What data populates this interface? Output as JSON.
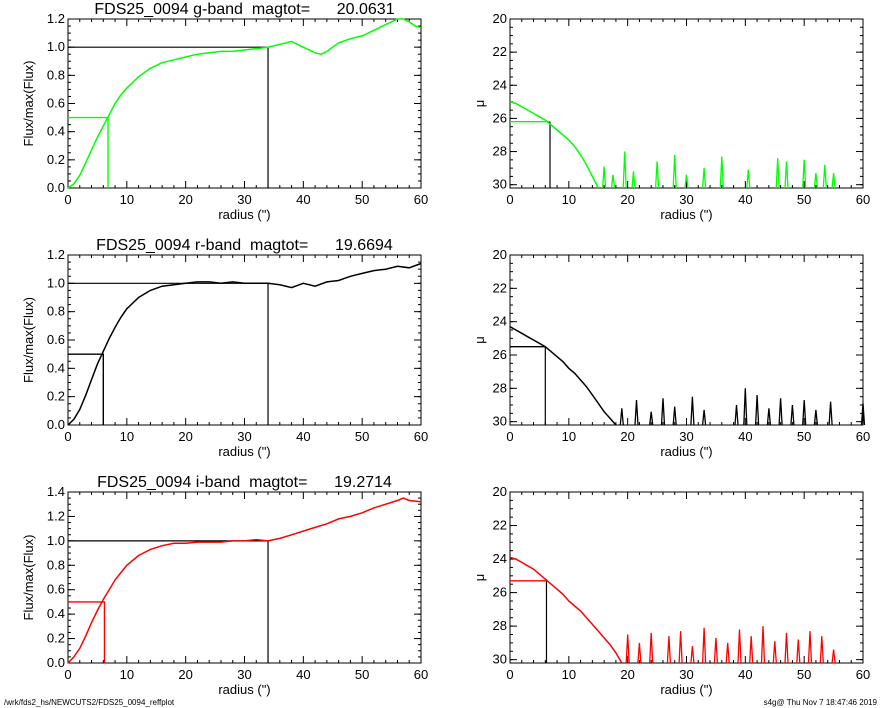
{
  "footer": {
    "path": "/wrk/fds2_hs/NEWCUTS2/FDS25_0094_reffplot",
    "stamp": "s4g@  Thu Nov  7 18:47:46 2019"
  },
  "chart_data": [
    {
      "id": "g-flux",
      "type": "line",
      "color": "#00ff00",
      "title": "FDS25_0094 g-band  magtot=      20.0631",
      "xlabel": "radius (\")",
      "ylabel": "Flux/max(Flux)",
      "xlim": [
        0,
        60
      ],
      "ylim": [
        0,
        1.2
      ],
      "xticks": [
        0,
        10,
        20,
        30,
        40,
        50,
        60
      ],
      "yticks": [
        0.0,
        0.2,
        0.4,
        0.6,
        0.8,
        1.0,
        1.2
      ],
      "ytick_labels": [
        "0.0",
        "0.2",
        "0.4",
        "0.6",
        "0.8",
        "1.0",
        "1.2"
      ],
      "series": [
        {
          "x": [
            0,
            1,
            2,
            3,
            4,
            5,
            6,
            7,
            8,
            9,
            10,
            12,
            14,
            16,
            18,
            20,
            22,
            24,
            26,
            28,
            30,
            32,
            34,
            36,
            38,
            40,
            42,
            43,
            44,
            46,
            48,
            50,
            52,
            54,
            56,
            57,
            58,
            59,
            60
          ],
          "y": [
            0.0,
            0.03,
            0.09,
            0.18,
            0.27,
            0.36,
            0.44,
            0.52,
            0.6,
            0.66,
            0.71,
            0.79,
            0.85,
            0.89,
            0.91,
            0.93,
            0.95,
            0.96,
            0.97,
            0.97,
            0.98,
            0.99,
            1.0,
            1.02,
            1.04,
            1.0,
            0.96,
            0.95,
            0.97,
            1.03,
            1.06,
            1.08,
            1.12,
            1.16,
            1.2,
            1.22,
            1.18,
            1.15,
            1.14
          ]
        }
      ],
      "reference": {
        "half_flux": 0.5,
        "r_eff": 6.8,
        "r_tot": 34.0,
        "f_tot": 1.0
      }
    },
    {
      "id": "g-mu",
      "type": "line",
      "color": "#00ff00",
      "xlabel": "radius (\")",
      "ylabel": "μ",
      "xlim": [
        0,
        60
      ],
      "ylim": [
        30.2,
        20
      ],
      "invert_y": true,
      "xticks": [
        0,
        10,
        20,
        30,
        40,
        50,
        60
      ],
      "yticks": [
        20,
        22,
        24,
        26,
        28,
        30
      ],
      "ytick_labels": [
        "20",
        "22",
        "24",
        "26",
        "28",
        "30"
      ],
      "series": [
        {
          "x": [
            0,
            1,
            2,
            3,
            4,
            5,
            6,
            7,
            8,
            9,
            10,
            11,
            12,
            13,
            14,
            15
          ],
          "y": [
            25.0,
            25.1,
            25.3,
            25.5,
            25.7,
            25.9,
            26.1,
            26.4,
            26.7,
            27.0,
            27.3,
            27.7,
            28.2,
            28.8,
            29.5,
            30.2
          ]
        }
      ],
      "reference": {
        "mu_eff": 26.2,
        "r_eff": 6.8
      },
      "noise_spikes": [
        [
          16,
          28.9
        ],
        [
          17.5,
          29.4
        ],
        [
          19.5,
          28.0
        ],
        [
          21,
          29.2
        ],
        [
          25,
          28.6
        ],
        [
          28,
          28.2
        ],
        [
          30,
          29.4
        ],
        [
          33,
          29.0
        ],
        [
          36,
          28.3
        ],
        [
          40.5,
          29.1
        ],
        [
          45.5,
          28.4
        ],
        [
          47,
          28.6
        ],
        [
          50,
          28.5
        ],
        [
          52,
          29.3
        ],
        [
          53.5,
          28.8
        ],
        [
          55,
          29.3
        ]
      ]
    },
    {
      "id": "r-flux",
      "type": "line",
      "color": "#000000",
      "title": "FDS25_0094 r-band  magtot=      19.6694",
      "xlabel": "radius (\")",
      "ylabel": "Flux/max(Flux)",
      "xlim": [
        0,
        60
      ],
      "ylim": [
        0,
        1.2
      ],
      "xticks": [
        0,
        10,
        20,
        30,
        40,
        50,
        60
      ],
      "yticks": [
        0.0,
        0.2,
        0.4,
        0.6,
        0.8,
        1.0,
        1.2
      ],
      "ytick_labels": [
        "0.0",
        "0.2",
        "0.4",
        "0.6",
        "0.8",
        "1.0",
        "1.2"
      ],
      "series": [
        {
          "x": [
            0,
            1,
            2,
            3,
            4,
            5,
            6,
            7,
            8,
            9,
            10,
            12,
            14,
            16,
            18,
            20,
            22,
            24,
            26,
            28,
            30,
            32,
            34,
            36,
            38,
            40,
            42,
            44,
            46,
            48,
            50,
            52,
            54,
            56,
            58,
            60
          ],
          "y": [
            0.0,
            0.04,
            0.11,
            0.21,
            0.32,
            0.43,
            0.52,
            0.61,
            0.69,
            0.76,
            0.82,
            0.9,
            0.95,
            0.98,
            0.99,
            1.0,
            1.01,
            1.01,
            1.0,
            1.01,
            1.0,
            1.0,
            1.0,
            0.99,
            0.97,
            1.0,
            0.98,
            1.01,
            1.02,
            1.05,
            1.07,
            1.09,
            1.1,
            1.12,
            1.11,
            1.14
          ]
        }
      ],
      "reference": {
        "half_flux": 0.5,
        "r_eff": 6.0,
        "r_tot": 34.0,
        "f_tot": 1.0
      }
    },
    {
      "id": "r-mu",
      "type": "line",
      "color": "#000000",
      "xlabel": "radius (\")",
      "ylabel": "μ",
      "xlim": [
        0,
        60
      ],
      "ylim": [
        30.2,
        20
      ],
      "invert_y": true,
      "xticks": [
        0,
        10,
        20,
        30,
        40,
        50,
        60
      ],
      "yticks": [
        20,
        22,
        24,
        26,
        28,
        30
      ],
      "ytick_labels": [
        "20",
        "22",
        "24",
        "26",
        "28",
        "30"
      ],
      "series": [
        {
          "x": [
            0,
            1,
            2,
            3,
            4,
            5,
            6,
            7,
            8,
            9,
            10,
            11,
            12,
            13,
            14,
            15,
            16,
            17,
            18
          ],
          "y": [
            24.3,
            24.5,
            24.7,
            24.9,
            25.1,
            25.3,
            25.5,
            25.8,
            26.1,
            26.4,
            26.8,
            27.1,
            27.5,
            27.9,
            28.4,
            28.9,
            29.4,
            29.8,
            30.2
          ]
        }
      ],
      "reference": {
        "mu_eff": 25.5,
        "r_eff": 6.0
      },
      "noise_spikes": [
        [
          19,
          29.2
        ],
        [
          21.5,
          28.7
        ],
        [
          24,
          29.4
        ],
        [
          26,
          28.6
        ],
        [
          28,
          29.1
        ],
        [
          31,
          28.5
        ],
        [
          33,
          29.3
        ],
        [
          38.5,
          29.0
        ],
        [
          40,
          28.0
        ],
        [
          42,
          28.4
        ],
        [
          44,
          29.2
        ],
        [
          46,
          28.6
        ],
        [
          48,
          29.0
        ],
        [
          50,
          28.7
        ],
        [
          52,
          29.3
        ],
        [
          54.5,
          28.8
        ],
        [
          60,
          28.9
        ]
      ]
    },
    {
      "id": "i-flux",
      "type": "line",
      "color": "#ff0000",
      "title": "FDS25_0094 i-band  magtot=      19.2714",
      "xlabel": "radius (\")",
      "ylabel": "Flux/max(Flux)",
      "xlim": [
        0,
        60
      ],
      "ylim": [
        0,
        1.4
      ],
      "xticks": [
        0,
        10,
        20,
        30,
        40,
        50,
        60
      ],
      "yticks": [
        0.0,
        0.2,
        0.4,
        0.6,
        0.8,
        1.0,
        1.2,
        1.4
      ],
      "ytick_labels": [
        "0.0",
        "0.2",
        "0.4",
        "0.6",
        "0.8",
        "1.0",
        "1.2",
        "1.4"
      ],
      "series": [
        {
          "x": [
            0,
            1,
            2,
            3,
            4,
            5,
            6,
            7,
            8,
            9,
            10,
            12,
            14,
            16,
            18,
            20,
            22,
            24,
            26,
            28,
            30,
            32,
            34,
            36,
            38,
            40,
            42,
            44,
            46,
            48,
            50,
            52,
            54,
            56,
            57,
            58,
            60
          ],
          "y": [
            0.0,
            0.05,
            0.12,
            0.22,
            0.33,
            0.43,
            0.52,
            0.6,
            0.68,
            0.74,
            0.8,
            0.88,
            0.93,
            0.96,
            0.98,
            0.98,
            0.99,
            0.99,
            0.99,
            1.0,
            1.0,
            1.01,
            1.0,
            1.02,
            1.05,
            1.08,
            1.11,
            1.14,
            1.18,
            1.2,
            1.23,
            1.27,
            1.3,
            1.33,
            1.35,
            1.33,
            1.32
          ]
        }
      ],
      "reference": {
        "half_flux": 0.5,
        "r_eff": 6.2,
        "r_tot": 34.0,
        "f_tot": 1.0
      }
    },
    {
      "id": "i-mu",
      "type": "line",
      "color": "#ff0000",
      "xlabel": "radius (\")",
      "ylabel": "μ",
      "xlim": [
        0,
        60
      ],
      "ylim": [
        30.2,
        20
      ],
      "invert_y": true,
      "xticks": [
        0,
        10,
        20,
        30,
        40,
        50,
        60
      ],
      "yticks": [
        20,
        22,
        24,
        26,
        28,
        30
      ],
      "ytick_labels": [
        "20",
        "22",
        "24",
        "26",
        "28",
        "30"
      ],
      "series": [
        {
          "x": [
            0,
            1,
            2,
            3,
            4,
            5,
            6,
            7,
            8,
            9,
            10,
            11,
            12,
            13,
            14,
            15,
            16,
            17,
            18,
            19
          ],
          "y": [
            23.9,
            24.0,
            24.2,
            24.4,
            24.6,
            24.9,
            25.2,
            25.5,
            25.8,
            26.1,
            26.5,
            26.8,
            27.1,
            27.5,
            27.9,
            28.3,
            28.7,
            29.1,
            29.6,
            30.2
          ]
        }
      ],
      "reference": {
        "mu_eff": 25.3,
        "r_eff": 6.2
      },
      "noise_spikes": [
        [
          20,
          28.5
        ],
        [
          22,
          29.0
        ],
        [
          24,
          28.4
        ],
        [
          27,
          28.6
        ],
        [
          29,
          28.3
        ],
        [
          31,
          29.2
        ],
        [
          33,
          28.1
        ],
        [
          35,
          28.7
        ],
        [
          37,
          29.0
        ],
        [
          39,
          28.2
        ],
        [
          41,
          28.6
        ],
        [
          43,
          28.0
        ],
        [
          45,
          28.9
        ],
        [
          47,
          28.4
        ],
        [
          49,
          28.8
        ],
        [
          51,
          28.3
        ],
        [
          53,
          28.6
        ],
        [
          55,
          29.4
        ]
      ]
    }
  ]
}
